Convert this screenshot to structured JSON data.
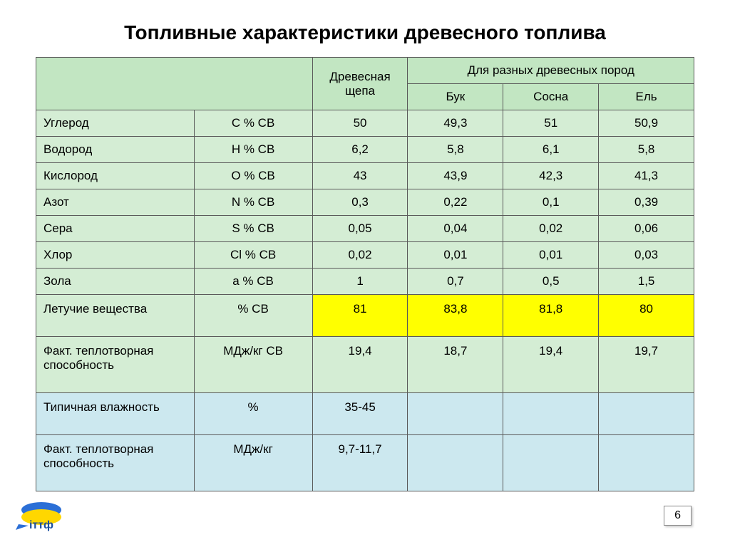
{
  "title": "Топливные характеристики древесного топлива",
  "page_number": "6",
  "colors": {
    "header_green": "#c2e6c2",
    "row_green": "#d4edd4",
    "highlight_yellow": "#ffff00",
    "row_blue": "#cce8ef",
    "border": "#5a5a5a",
    "background": "#ffffff"
  },
  "fontsize": {
    "title": 28,
    "cell": 17
  },
  "table": {
    "header": {
      "col_chip": "Древесная щепа",
      "col_species_group": "Для разных древесных пород",
      "species": [
        "Бук",
        "Сосна",
        "Ель"
      ]
    },
    "rows": [
      {
        "style": "green",
        "name": "Углерод",
        "unit": "С % СВ",
        "vals": [
          "50",
          "49,3",
          "51",
          "50,9"
        ]
      },
      {
        "style": "green",
        "name": "Водород",
        "unit": "Н % СВ",
        "vals": [
          "6,2",
          "5,8",
          "6,1",
          "5,8"
        ]
      },
      {
        "style": "green",
        "name": "Кислород",
        "unit": "О % СВ",
        "vals": [
          "43",
          "43,9",
          "42,3",
          "41,3"
        ]
      },
      {
        "style": "green",
        "name": "Азот",
        "unit": "N % СВ",
        "vals": [
          "0,3",
          "0,22",
          "0,1",
          "0,39"
        ]
      },
      {
        "style": "green",
        "name": "Сера",
        "unit": "S % СВ",
        "vals": [
          "0,05",
          "0,04",
          "0,02",
          "0,06"
        ]
      },
      {
        "style": "green",
        "name": "Хлор",
        "unit": "Cl % СВ",
        "vals": [
          "0,02",
          "0,01",
          "0,01",
          "0,03"
        ]
      },
      {
        "style": "green",
        "name": "Зола",
        "unit": "а % СВ",
        "vals": [
          "1",
          "0,7",
          "0,5",
          "1,5"
        ]
      },
      {
        "style": "yellow",
        "tall": true,
        "name": "Летучие вещества",
        "unit": "% СВ",
        "vals": [
          "81",
          "83,8",
          "81,8",
          "80"
        ]
      },
      {
        "style": "green",
        "tall": true,
        "name": "Факт. теплотворная способность",
        "unit": "МДж/кг СВ",
        "vals": [
          "19,4",
          "18,7",
          "19,4",
          "19,7"
        ]
      },
      {
        "style": "blue",
        "tall": true,
        "name": "Типичная влажность",
        "unit": "%",
        "vals": [
          "35-45",
          "",
          "",
          ""
        ]
      },
      {
        "style": "blue",
        "tall": true,
        "name": "Факт. теплотворная способность",
        "unit": "МДж/кг",
        "vals": [
          "9,7-11,7",
          "",
          "",
          ""
        ]
      }
    ]
  },
  "logo": {
    "text": "іттф",
    "flag_top_color": "#2b6fd6",
    "flag_bottom_color": "#ffd700",
    "text_color": "#1a4fa0"
  }
}
